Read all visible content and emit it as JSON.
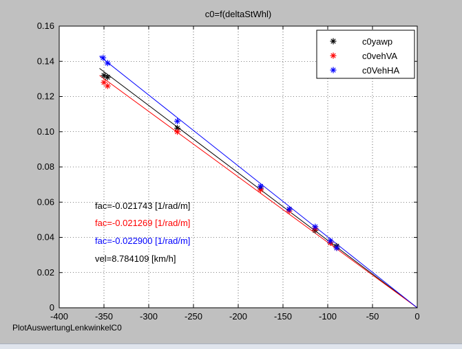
{
  "chart_data": {
    "type": "scatter",
    "title": "c0=f(deltaStWhl)",
    "xlabel": "",
    "ylabel": "",
    "xlim": [
      -400,
      0
    ],
    "ylim": [
      0,
      0.16
    ],
    "xticks": [
      -400,
      -350,
      -300,
      -250,
      -200,
      -150,
      -100,
      -50,
      0
    ],
    "yticks": [
      0,
      0.02,
      0.04,
      0.06,
      0.08,
      0.1,
      0.12,
      0.14,
      0.16
    ],
    "grid": true,
    "legend_position": "top-right",
    "series": [
      {
        "name": "c0yawp",
        "color": "#000000",
        "marker": "*",
        "x": [
          -350,
          -346,
          -268,
          -175,
          -143,
          -114,
          -97,
          -90
        ],
        "y": [
          0.132,
          0.131,
          0.102,
          0.068,
          0.056,
          0.044,
          0.037,
          0.035
        ],
        "fit": {
          "x": [
            -355,
            0
          ],
          "y": [
            0.136,
            0.0
          ]
        }
      },
      {
        "name": "c0vehVA",
        "color": "#ff0000",
        "marker": "*",
        "x": [
          -350,
          -346,
          -268,
          -175,
          -143,
          -114,
          -97,
          -90
        ],
        "y": [
          0.128,
          0.126,
          0.1,
          0.067,
          0.055,
          0.045,
          0.037,
          0.034
        ],
        "fit": {
          "x": [
            -355,
            0
          ],
          "y": [
            0.132,
            0.0
          ]
        }
      },
      {
        "name": "c0VehHA",
        "color": "#0000ff",
        "marker": "*",
        "x": [
          -351,
          -346,
          -268,
          -175,
          -143,
          -114,
          -97,
          -90
        ],
        "y": [
          0.142,
          0.139,
          0.106,
          0.069,
          0.056,
          0.046,
          0.038,
          0.034
        ],
        "fit": {
          "x": [
            -355,
            0
          ],
          "y": [
            0.143,
            0.0
          ]
        }
      }
    ],
    "annotations": [
      {
        "text": "fac=-0.021743 [1/rad/m]",
        "color": "#000000"
      },
      {
        "text": "fac=-0.021269 [1/rad/m]",
        "color": "#ff0000"
      },
      {
        "text": "fac=-0.022900 [1/rad/m]",
        "color": "#0000ff"
      },
      {
        "text": "vel=8.784109 [km/h]",
        "color": "#000000"
      }
    ]
  },
  "footer": {
    "label": "PlotAuswertungLenkwinkelC0"
  }
}
